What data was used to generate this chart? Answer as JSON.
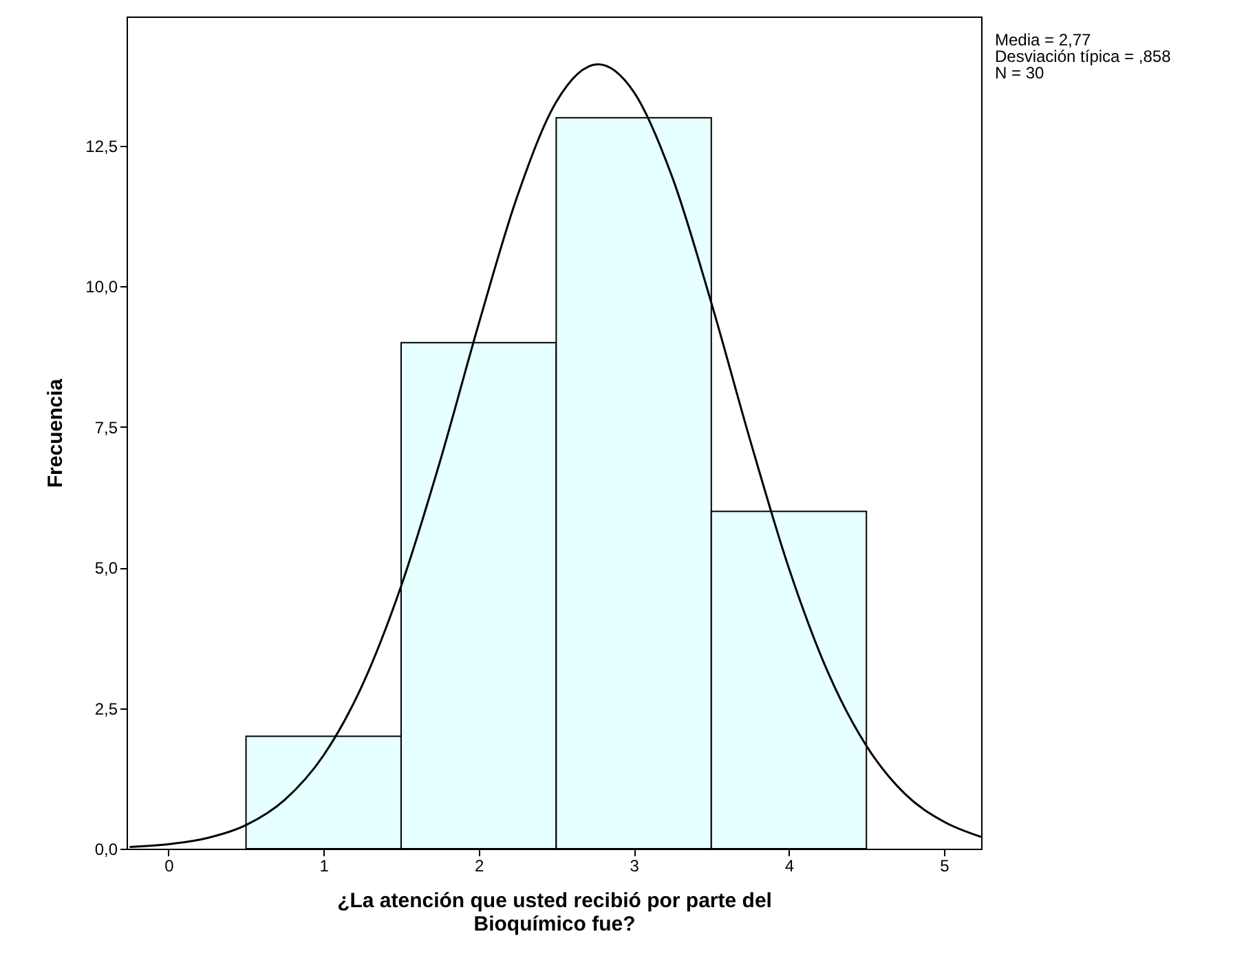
{
  "chart_data": {
    "type": "histogram",
    "xlabel": "¿La atención que usted recibió por parte del Bioquímico fue?",
    "ylabel": "Frecuencia",
    "bins": [
      0.5,
      1.5,
      2.5,
      3.5,
      4.5
    ],
    "values": [
      2,
      9,
      13,
      6
    ],
    "color": "#e6ffff",
    "series": [
      {
        "type": "line",
        "color": "#000000",
        "x": [
          -0.25,
          0,
          0.25,
          0.5,
          0.75,
          1,
          1.25,
          1.5,
          1.75,
          2,
          2.25,
          2.5,
          2.77,
          3,
          3.25,
          3.5,
          3.75,
          4,
          4.25,
          4.5,
          4.75,
          5,
          5.24
        ],
        "values": [
          0.03,
          0.08,
          0.19,
          0.42,
          0.87,
          1.66,
          2.91,
          4.67,
          6.88,
          9.33,
          11.61,
          13.28,
          13.95,
          13.46,
          11.93,
          9.71,
          7.27,
          4.99,
          3.15,
          1.83,
          0.97,
          0.48,
          0.21
        ]
      }
    ],
    "xlim": [
      -0.27,
      5.24
    ],
    "ylim": [
      0,
      14.8
    ],
    "xticks": [
      0,
      1,
      2,
      3,
      4,
      5
    ],
    "yticks": [
      {
        "value": 0,
        "label": "0,0"
      },
      {
        "value": 2.5,
        "label": "2,5"
      },
      {
        "value": 5,
        "label": "5,0"
      },
      {
        "value": 7.5,
        "label": "7,5"
      },
      {
        "value": 10,
        "label": "10,0"
      },
      {
        "value": 12.5,
        "label": "12,5"
      }
    ],
    "grid": false,
    "annotations": [
      "Media = 2,77",
      "Desviación típica = ,858",
      "N = 30"
    ]
  }
}
